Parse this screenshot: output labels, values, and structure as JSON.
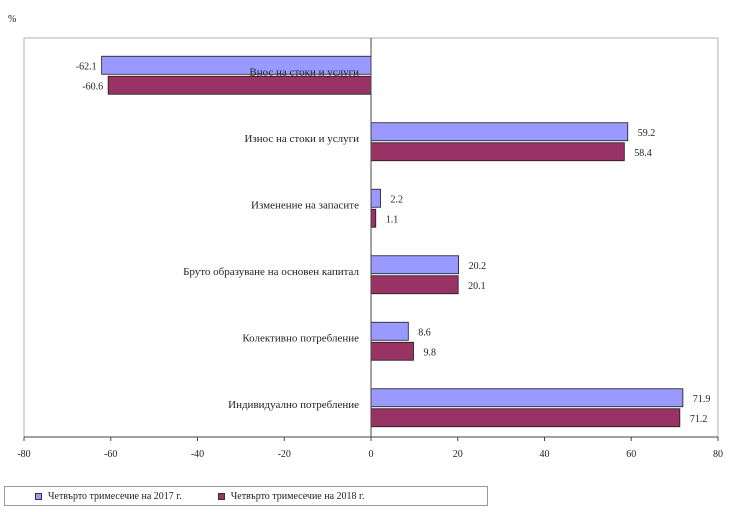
{
  "chart_data": {
    "type": "bar",
    "orientation": "horizontal",
    "title": "",
    "ylabel": "%",
    "xlabel": "",
    "xlim": [
      -80,
      80
    ],
    "xticks": [
      -80,
      -60,
      -40,
      -20,
      0,
      20,
      40,
      60,
      80
    ],
    "grid": false,
    "legend_position": "bottom-left",
    "categories": [
      "Внос на стоки и услуги",
      "Износ на стоки и услуги",
      "Изменение на запасите",
      "Бруто образуване на основен капитал",
      "Колективно  потребление",
      "Индивидуално  потребление"
    ],
    "series": [
      {
        "name": "Четвърто тримесечие  на 2017 г.",
        "color": "#9999ff",
        "values": [
          -62.1,
          59.2,
          2.2,
          20.2,
          8.6,
          71.9
        ],
        "labels": [
          "-62.1",
          "59.2",
          "2.2",
          "20.2",
          "8.6",
          "71.9"
        ]
      },
      {
        "name": "Четвърто тримесечие  на 2018 г.",
        "color": "#993366",
        "values": [
          -60.6,
          58.4,
          1.1,
          20.1,
          9.8,
          71.2
        ],
        "labels": [
          "-60.6",
          "58.4",
          "1.1",
          "20.1",
          "9.8",
          "71.2"
        ]
      }
    ]
  }
}
